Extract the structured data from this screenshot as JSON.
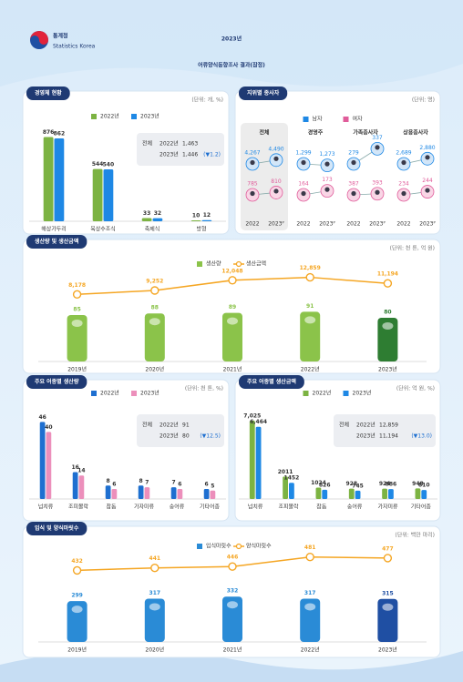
{
  "header": {
    "agency": "통계청",
    "agency_en": "Statistics Korea",
    "year": "2023년",
    "title": "어류양식동향조사 결과(잠정)"
  },
  "chart_data": [
    {
      "type": "bar",
      "title": "경영체 현황",
      "unit": "(단위: 개, %)",
      "categories": [
        "해상가두리",
        "육상수조식",
        "축제식",
        "방형"
      ],
      "series": [
        {
          "name": "2022년",
          "color": "#7cb342",
          "values": [
            876,
            544,
            33,
            10
          ]
        },
        {
          "name": "2023년",
          "color": "#1e88e5",
          "values": [
            862,
            540,
            32,
            12
          ]
        }
      ],
      "ylim": [
        0,
        900
      ],
      "note": {
        "label": "전체",
        "rows": [
          {
            "year": "2022년",
            "value": "1,463"
          },
          {
            "year": "2023년",
            "value": "1,446",
            "change": "(▼1.2)"
          }
        ]
      }
    },
    {
      "type": "line",
      "title": "지위별 종사자",
      "unit": "(단위: 명)",
      "legend": [
        {
          "name": "남자",
          "color": "#1e88e5"
        },
        {
          "name": "여자",
          "color": "#e05c9a"
        }
      ],
      "x": [
        "2022",
        "2023ᴾ"
      ],
      "groups": [
        {
          "name": "전체",
          "series": [
            {
              "values": [
                4267,
                4490
              ],
              "value_labels": [
                "4,267",
                "4,490"
              ]
            },
            {
              "values": [
                785,
                810
              ]
            }
          ]
        },
        {
          "name": "경영주",
          "series": [
            {
              "values": [
                1299,
                1273
              ],
              "value_labels": [
                "1,299",
                "1,273"
              ]
            },
            {
              "values": [
                164,
                173
              ]
            }
          ]
        },
        {
          "name": "가족종사자",
          "series": [
            {
              "values": [
                279,
                337
              ]
            },
            {
              "values": [
                387,
                393
              ]
            }
          ]
        },
        {
          "name": "상용종사자",
          "series": [
            {
              "values": [
                2689,
                2880
              ],
              "value_labels": [
                "2,689",
                "2,880"
              ]
            },
            {
              "values": [
                234,
                244
              ]
            }
          ]
        }
      ]
    },
    {
      "type": "combo",
      "title": "생산량 및 생산금액",
      "unit": "(단위: 천 톤, 억 원)",
      "categories": [
        "2019년",
        "2020년",
        "2021년",
        "2022년",
        "2023년"
      ],
      "series": [
        {
          "name": "생산량",
          "type": "bar",
          "colors": [
            "#8bc34a",
            "#8bc34a",
            "#8bc34a",
            "#8bc34a",
            "#2e7d32"
          ],
          "values": [
            85,
            88,
            89,
            91,
            80
          ]
        },
        {
          "name": "생산금액",
          "type": "line",
          "axis": "y2",
          "color": "#f5a623",
          "values": [
            8178,
            9252,
            12048,
            12859,
            11194
          ],
          "value_labels": [
            "8,178",
            "9,252",
            "12,048",
            "12,859",
            "11,194"
          ]
        }
      ],
      "ylim": [
        0,
        150
      ],
      "y2lim": [
        4000,
        14000
      ]
    },
    {
      "type": "bar",
      "title": "주요 어종별 생산량",
      "unit": "(단위: 천 톤, %)",
      "categories": [
        "넙치류",
        "조피볼락",
        "참돔",
        "가자미류",
        "숭어류",
        "기타어종"
      ],
      "series": [
        {
          "name": "2022년",
          "color": "#1e6fd0",
          "values": [
            46,
            16,
            8,
            8,
            7,
            6
          ]
        },
        {
          "name": "2023년",
          "color": "#ec8fbb",
          "values": [
            40,
            14,
            6,
            7,
            6,
            5
          ]
        }
      ],
      "ylim": [
        0,
        50
      ],
      "note": {
        "label": "전체",
        "rows": [
          {
            "year": "2022년",
            "value": "91"
          },
          {
            "year": "2023년",
            "value": "80",
            "change": "(▼12.5)"
          }
        ]
      }
    },
    {
      "type": "bar",
      "title": "주요 어종별 생산금액",
      "unit": "(단위: 억 원, %)",
      "categories": [
        "넙치류",
        "조피볼락",
        "참돔",
        "숭어류",
        "가자미류",
        "기타어종"
      ],
      "series": [
        {
          "name": "2022년",
          "color": "#7cb342",
          "values": [
            7025,
            2011,
            1024,
            928,
            924,
            948
          ],
          "value_labels": [
            "7,025",
            "2011",
            "1024",
            "928",
            "924",
            "948"
          ]
        },
        {
          "name": "2023년",
          "color": "#1e88e5",
          "values": [
            6464,
            1452,
            826,
            745,
            886,
            810
          ],
          "value_labels": [
            "6,464",
            "1452",
            "826",
            "745",
            "886",
            "810"
          ]
        }
      ],
      "ylim": [
        0,
        7500
      ],
      "note": {
        "label": "전체",
        "rows": [
          {
            "year": "2022년",
            "value": "12,859"
          },
          {
            "year": "2023년",
            "value": "11,194",
            "change": "(▼13.0)"
          }
        ]
      }
    },
    {
      "type": "combo",
      "title": "입식 및 양식마릿수",
      "unit": "(단위: 백만 마리)",
      "categories": [
        "2019년",
        "2020년",
        "2021년",
        "2022년",
        "2023년"
      ],
      "series": [
        {
          "name": "입식마릿수",
          "type": "bar",
          "colors": [
            "#2a8bd6",
            "#2a8bd6",
            "#2a8bd6",
            "#2a8bd6",
            "#1f4fa3"
          ],
          "values": [
            299,
            317,
            332,
            317,
            315
          ]
        },
        {
          "name": "양식마릿수",
          "type": "line",
          "axis": "y2",
          "color": "#f5a623",
          "values": [
            432,
            441,
            446,
            481,
            477
          ]
        }
      ],
      "ylim": [
        0,
        500
      ],
      "y2lim": [
        300,
        500
      ]
    }
  ]
}
